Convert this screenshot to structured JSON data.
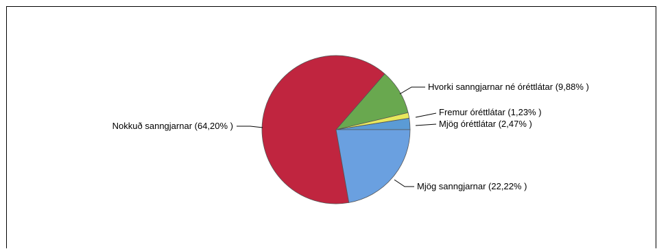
{
  "chart_data": {
    "type": "pie",
    "title": "",
    "start_angle_deg": 0,
    "direction": "counterclockwise",
    "slices": [
      {
        "label": "Mjög óréttlátar (2,47% )",
        "value": 2.47,
        "color": "#5b9bd5"
      },
      {
        "label": "Fremur óréttlátar (1,23% )",
        "value": 1.23,
        "color": "#e8e85c"
      },
      {
        "label": "Hvorki sanngjarnar né óréttlátar (9,88% )",
        "value": 9.88,
        "color": "#69a84f"
      },
      {
        "label": "Nokkuð sanngjarnar (64,20% )",
        "value": 64.2,
        "color": "#c0253f"
      },
      {
        "label": "Mjög sanngjarnar (22,22% )",
        "value": 22.22,
        "color": "#6aa0e0"
      }
    ]
  }
}
